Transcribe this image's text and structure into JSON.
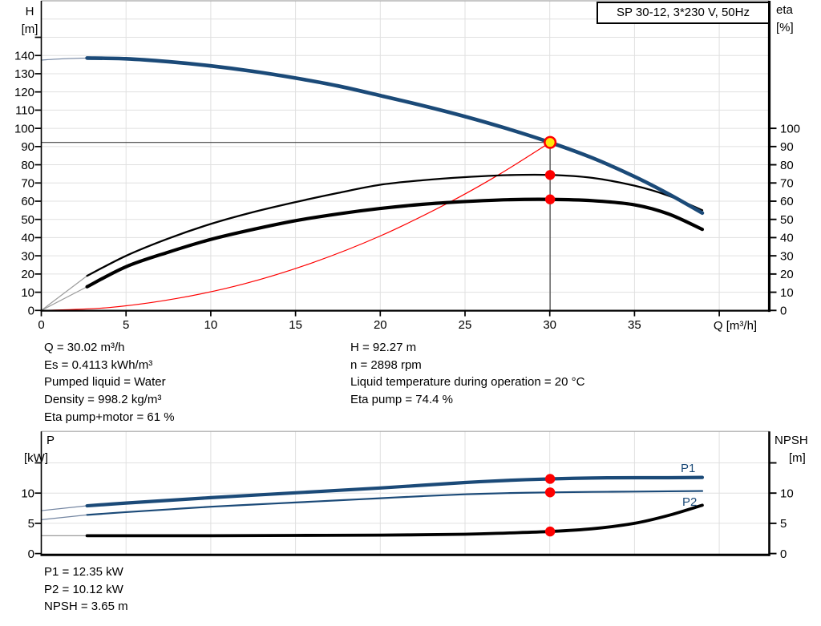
{
  "title_box": {
    "label": "SP 30-12, 3*230 V, 50Hz"
  },
  "colors": {
    "blue": "#1b4a78",
    "blue_thin": "#7486a2",
    "black": "#000000",
    "black_thin": "#9b9b9b",
    "red": "#fe0000",
    "yellow": "#ffe60a",
    "grid": "#e0e0e0",
    "top_spine": "#a6a6a6",
    "crosshair": "#404040",
    "text": "#000000"
  },
  "top_axis_labels": {
    "left_line1": "H",
    "left_line2": "[m]",
    "right_line1": "eta",
    "right_line2": "[%]",
    "x_unit": "Q [m³/h]"
  },
  "bottom_axis_labels": {
    "left_line1": "P",
    "left_line2": "[kW]",
    "right_line1": "NPSH",
    "right_line2": "[m]"
  },
  "curve_labels": {
    "p1": "P1",
    "p2": "P2"
  },
  "info_block": {
    "left": [
      "Q = 30.02 m³/h",
      "Es = 0.4113 kWh/m³",
      "Pumped liquid = Water",
      "Density = 998.2 kg/m³",
      "Eta pump+motor = 61 %"
    ],
    "right": [
      "H = 92.27 m",
      "n = 2898 rpm",
      "Liquid temperature during operation = 20 °C",
      "Eta pump = 74.4 %"
    ]
  },
  "bottom_info": [
    "P1 = 12.35 kW",
    "P2 = 10.12 kW",
    "NPSH = 3.65 m"
  ],
  "chart_data": [
    {
      "type": "line",
      "title": "SP 30-12, 3*230 V, 50Hz",
      "xlabel": "Q [m³/h]",
      "x_range": [
        0,
        43
      ],
      "x_grid": [
        5,
        10,
        15,
        20,
        25,
        30,
        35,
        40
      ],
      "x_ticks": [
        0,
        5,
        10,
        15,
        20,
        25,
        30,
        35,
        40
      ],
      "x_tick_labels": [
        {
          "value": 0,
          "label": "0"
        },
        {
          "value": 5,
          "label": "5"
        },
        {
          "value": 10,
          "label": "10"
        },
        {
          "value": 15,
          "label": "15"
        },
        {
          "value": 20,
          "label": "20"
        },
        {
          "value": 25,
          "label": "25"
        },
        {
          "value": 30,
          "label": "30"
        },
        {
          "value": 35,
          "label": "35"
        }
      ],
      "left_axis": {
        "label": "H [m]",
        "range": [
          0,
          170
        ],
        "grid": [
          10,
          20,
          30,
          40,
          50,
          60,
          70,
          80,
          90,
          100,
          110,
          120,
          130,
          140,
          150,
          160
        ],
        "ticks": [
          0,
          10,
          20,
          30,
          40,
          50,
          60,
          70,
          80,
          90,
          100,
          110,
          120,
          130,
          140,
          150
        ],
        "labels": [
          0,
          10,
          20,
          30,
          40,
          50,
          60,
          70,
          80,
          90,
          100,
          110,
          120,
          130,
          140
        ]
      },
      "right_axis": {
        "label": "eta [%]",
        "range": [
          0,
          170
        ],
        "ticks": [
          0,
          10,
          20,
          30,
          40,
          50,
          60,
          70,
          80,
          90,
          100
        ],
        "labels": [
          0,
          10,
          20,
          30,
          40,
          50,
          60,
          70,
          80,
          90,
          100
        ]
      },
      "crosshair": {
        "q": 30.02,
        "v": 92.27
      },
      "series": [
        {
          "name": "system-curve",
          "color": "red",
          "width": 1.2,
          "points": [
            [
              0,
              0
            ],
            [
              4,
              1.6
            ],
            [
              8,
              6.6
            ],
            [
              12,
              14.7
            ],
            [
              16,
              26.2
            ],
            [
              20,
              40.9
            ],
            [
              24,
              59
            ],
            [
              27,
              74.6
            ],
            [
              30.02,
              92.27
            ]
          ]
        },
        {
          "name": "eta-pump-curve",
          "color": "black",
          "width": 2.3,
          "thin_until": 2.7,
          "points": [
            [
              0,
              0
            ],
            [
              2.7,
              19
            ],
            [
              5,
              30
            ],
            [
              7.5,
              39.5
            ],
            [
              10,
              47.5
            ],
            [
              12.5,
              54
            ],
            [
              15,
              59.5
            ],
            [
              17.5,
              64.5
            ],
            [
              20,
              69
            ],
            [
              22.5,
              71.5
            ],
            [
              25,
              73.2
            ],
            [
              27.5,
              74.3
            ],
            [
              30.02,
              74.4
            ],
            [
              32.5,
              72.8
            ],
            [
              35,
              68.5
            ],
            [
              37,
              63
            ],
            [
              39,
              55
            ]
          ]
        },
        {
          "name": "eta-pump-motor-curve",
          "color": "black",
          "width": 4.2,
          "thin_until": 2.7,
          "points": [
            [
              0,
              0
            ],
            [
              2.7,
              13
            ],
            [
              5,
              24
            ],
            [
              7.5,
              32
            ],
            [
              10,
              39
            ],
            [
              12.5,
              44.5
            ],
            [
              15,
              49.3
            ],
            [
              17.5,
              53
            ],
            [
              20,
              56
            ],
            [
              22.5,
              58.3
            ],
            [
              25,
              59.8
            ],
            [
              27.5,
              60.8
            ],
            [
              30.02,
              61
            ],
            [
              32.5,
              60.3
            ],
            [
              35,
              58
            ],
            [
              37,
              53
            ],
            [
              39,
              44.5
            ]
          ]
        },
        {
          "name": "head-curve",
          "color": "blue",
          "width": 4.6,
          "thin_until": 2.7,
          "points": [
            [
              0,
              137.5
            ],
            [
              1.3,
              138.2
            ],
            [
              2.7,
              138.6
            ],
            [
              5,
              138.2
            ],
            [
              7.5,
              136.6
            ],
            [
              10,
              134.3
            ],
            [
              12.5,
              131.3
            ],
            [
              15,
              127.6
            ],
            [
              17.5,
              123.3
            ],
            [
              20,
              118
            ],
            [
              22.5,
              112.5
            ],
            [
              25,
              106.5
            ],
            [
              27.5,
              99.8
            ],
            [
              30.02,
              92.27
            ],
            [
              32.5,
              83.8
            ],
            [
              35,
              73.5
            ],
            [
              37,
              64
            ],
            [
              39,
              53.5
            ]
          ]
        }
      ],
      "markers": [
        {
          "name": "duty-point",
          "q": 30.02,
          "v": 92.27,
          "style": "yellow",
          "interactable": true
        },
        {
          "name": "eta-pump-point",
          "q": 30.02,
          "v": 74.4,
          "style": "red",
          "interactable": false
        },
        {
          "name": "eta-pump-motor-point",
          "q": 30.02,
          "v": 61,
          "style": "red",
          "interactable": false
        }
      ]
    },
    {
      "type": "line",
      "xlabel": "",
      "x_range": [
        0,
        43
      ],
      "x_grid": [
        5,
        10,
        15,
        20,
        25,
        30,
        35,
        40
      ],
      "x_ticks": [],
      "x_tick_labels": [],
      "left_axis": {
        "label": "P [kW]",
        "range": [
          0,
          20.3
        ],
        "grid": [
          5,
          10,
          15
        ],
        "ticks": [
          0,
          5,
          10,
          15
        ],
        "labels": [
          0,
          5,
          10
        ]
      },
      "right_axis": {
        "label": "NPSH [m]",
        "range": [
          0,
          20.3
        ],
        "ticks": [
          0,
          5,
          10,
          15
        ],
        "labels": [
          0,
          5,
          10
        ]
      },
      "series": [
        {
          "name": "npsh-curve",
          "color": "black",
          "width": 3.8,
          "thin_until": 2.7,
          "points": [
            [
              0,
              2.95
            ],
            [
              2.7,
              2.95
            ],
            [
              5,
              2.95
            ],
            [
              10,
              2.95
            ],
            [
              15,
              3.0
            ],
            [
              20,
              3.05
            ],
            [
              25,
              3.2
            ],
            [
              27.5,
              3.4
            ],
            [
              30.02,
              3.65
            ],
            [
              32.5,
              4.1
            ],
            [
              35,
              5.0
            ],
            [
              37,
              6.3
            ],
            [
              39,
              8.0
            ]
          ]
        },
        {
          "name": "p2-curve",
          "color": "blue",
          "width": 2.2,
          "thin_until": 2.7,
          "points": [
            [
              0,
              5.6
            ],
            [
              2.7,
              6.4
            ],
            [
              5,
              6.85
            ],
            [
              7.5,
              7.3
            ],
            [
              10,
              7.75
            ],
            [
              12.5,
              8.1
            ],
            [
              15,
              8.45
            ],
            [
              17.5,
              8.8
            ],
            [
              20,
              9.15
            ],
            [
              22.5,
              9.5
            ],
            [
              25,
              9.8
            ],
            [
              27.5,
              10.0
            ],
            [
              30.02,
              10.12
            ],
            [
              32.5,
              10.2
            ],
            [
              35,
              10.25
            ],
            [
              37,
              10.3
            ],
            [
              39,
              10.35
            ]
          ]
        },
        {
          "name": "p1-curve",
          "color": "blue",
          "width": 4.2,
          "thin_until": 2.7,
          "points": [
            [
              0,
              7.1
            ],
            [
              2.7,
              7.9
            ],
            [
              5,
              8.35
            ],
            [
              7.5,
              8.8
            ],
            [
              10,
              9.25
            ],
            [
              12.5,
              9.65
            ],
            [
              15,
              10.05
            ],
            [
              17.5,
              10.45
            ],
            [
              20,
              10.85
            ],
            [
              22.5,
              11.3
            ],
            [
              25,
              11.75
            ],
            [
              27.5,
              12.1
            ],
            [
              30.02,
              12.35
            ],
            [
              32.5,
              12.5
            ],
            [
              35,
              12.55
            ],
            [
              37,
              12.55
            ],
            [
              39,
              12.6
            ]
          ]
        }
      ],
      "markers": [
        {
          "name": "p1-point",
          "q": 30.02,
          "v": 12.35,
          "style": "red",
          "interactable": false
        },
        {
          "name": "p2-point",
          "q": 30.02,
          "v": 10.12,
          "style": "red",
          "interactable": false
        },
        {
          "name": "npsh-point",
          "q": 30.02,
          "v": 3.65,
          "style": "red",
          "interactable": false
        }
      ]
    }
  ]
}
